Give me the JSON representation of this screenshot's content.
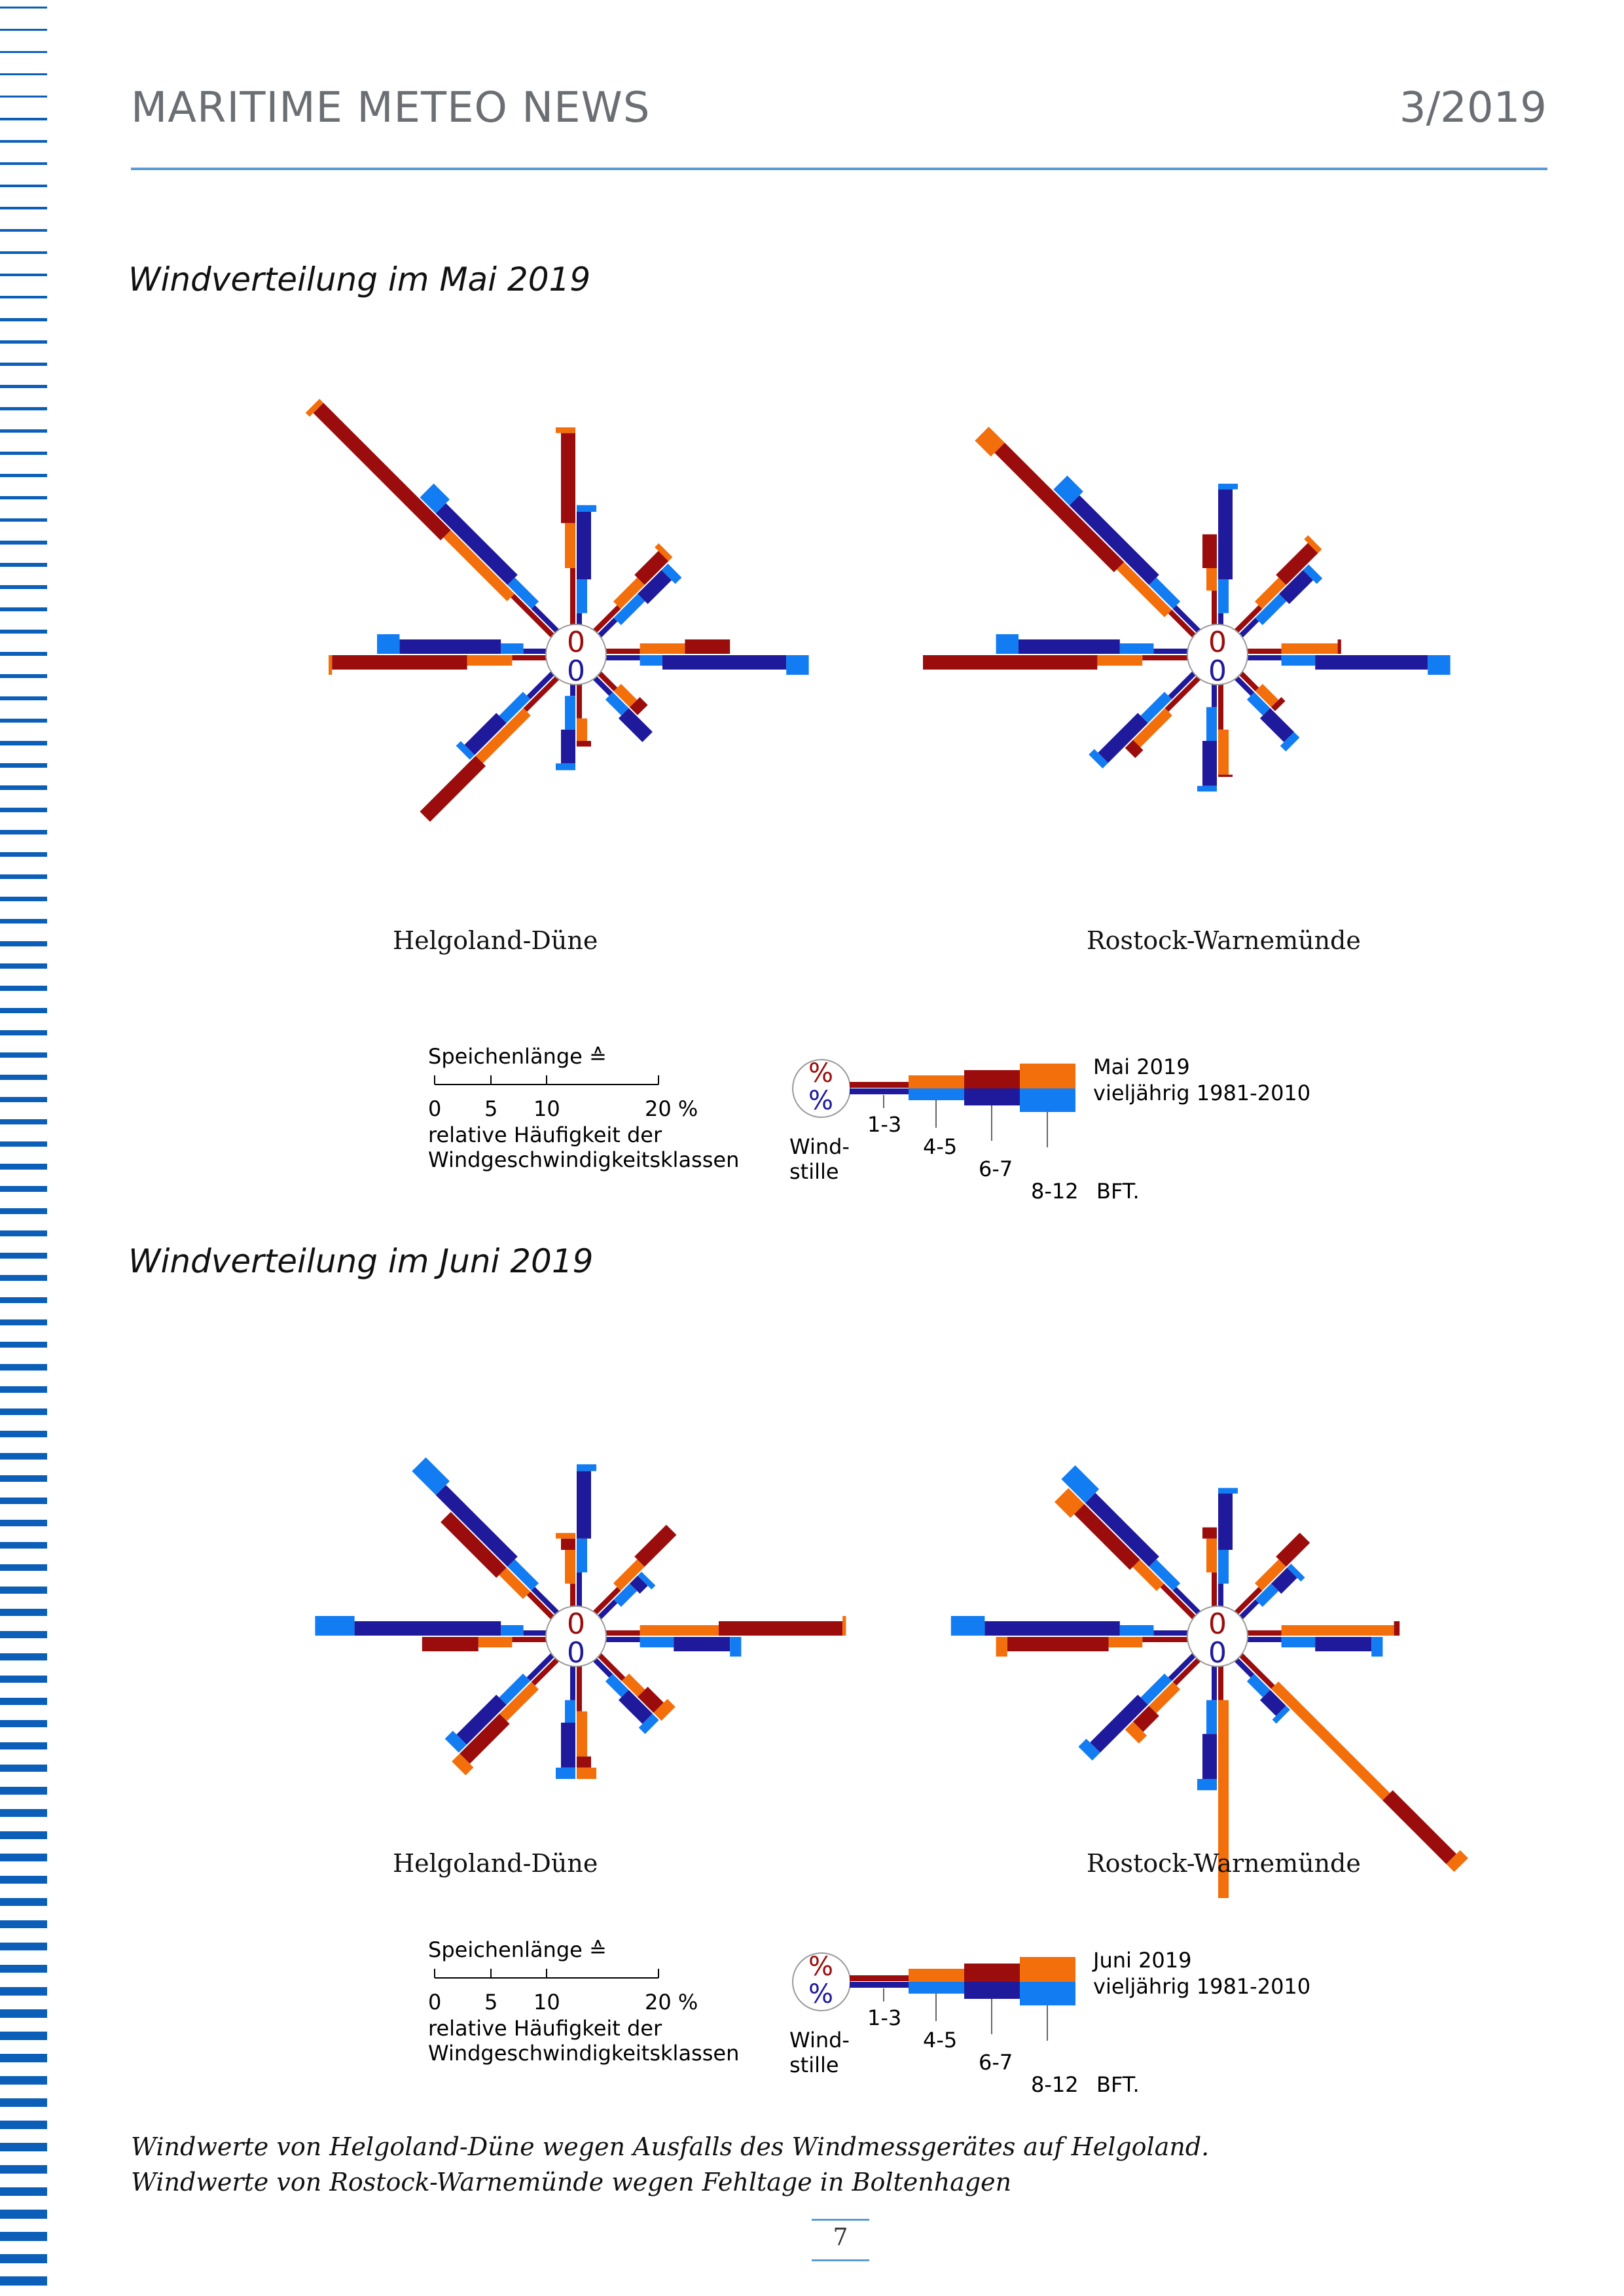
{
  "header": {
    "title": "MARITIME METEO NEWS",
    "issue": "3/2019"
  },
  "colors": {
    "stripe": "#0c5fb8",
    "rule": "#5b9bd5",
    "current_calm_low": "#9b0c0c",
    "current_45": "#f26f0c",
    "current_high": "#f26f0c",
    "current_67": "#9b0c0c",
    "clim_low": "#1f1a9b",
    "clim_45": "#127df2",
    "clim_67": "#1f1a9b",
    "clim_high": "#127df2"
  },
  "sections": [
    {
      "title": "Windverteilung im Mai 2019",
      "legend": {
        "scale_title": "Speichenlänge ≙",
        "scale_ticks": [
          "0",
          "5",
          "10",
          "20 %"
        ],
        "scale_caption_1": "relative Häufigkeit der",
        "scale_caption_2": "Windgeschwindigkeitsklassen",
        "calm_symbol": "%",
        "calm_label_1": "Wind-",
        "calm_label_2": "stille",
        "class_labels": [
          "1-3",
          "4-5",
          "6-7",
          "8-12"
        ],
        "unit": "BFT.",
        "current_label": "Mai 2019",
        "clim_label": "vieljährig 1981-2010"
      }
    },
    {
      "title": "Windverteilung im Juni 2019",
      "legend": {
        "scale_title": "Speichenlänge ≙",
        "scale_ticks": [
          "0",
          "5",
          "10",
          "20 %"
        ],
        "scale_caption_1": "relative Häufigkeit der",
        "scale_caption_2": "Windgeschwindigkeitsklassen",
        "calm_symbol": "%",
        "calm_label_1": "Wind-",
        "calm_label_2": "stille",
        "class_labels": [
          "1-3",
          "4-5",
          "6-7",
          "8-12"
        ],
        "unit": "BFT.",
        "current_label": "Juni 2019",
        "clim_label": "vieljährig 1981-2010"
      }
    }
  ],
  "notes": [
    "Windwerte von Helgoland-Düne wegen Ausfalls des Windmessgerätes auf Helgoland.",
    "Windwerte von Rostock-Warnemünde wegen Fehltage in Boltenhagen"
  ],
  "page_number": "7",
  "chart_data": [
    {
      "type": "wind-rose",
      "month": "Mai 2019",
      "station": "Helgoland-Düne",
      "calm_current": "0",
      "calm_clim": "0",
      "directions": [
        "N",
        "NE",
        "E",
        "SE",
        "S",
        "SW",
        "W",
        "NW"
      ],
      "current": [
        [
          5,
          4,
          8,
          0.5
        ],
        [
          3,
          3,
          3,
          0.5
        ],
        [
          3,
          4,
          4,
          0
        ],
        [
          2,
          2,
          1,
          0
        ],
        [
          3,
          2,
          0.5,
          0
        ],
        [
          4,
          6,
          7,
          0
        ],
        [
          3,
          4,
          12,
          0.3
        ],
        [
          5,
          8,
          16,
          0.5
        ]
      ],
      "clim": [
        [
          1,
          3,
          6,
          0.6
        ],
        [
          2,
          3,
          3,
          0.8
        ],
        [
          3,
          2,
          11,
          2
        ],
        [
          2,
          2,
          3,
          0
        ],
        [
          1,
          3,
          3,
          0.6
        ],
        [
          3,
          3,
          4,
          0.6
        ],
        [
          2,
          2,
          9,
          2
        ],
        [
          3,
          3,
          9,
          2
        ]
      ]
    },
    {
      "type": "wind-rose",
      "month": "Mai 2019",
      "station": "Rostock-Warnemünde",
      "calm_current": "0",
      "calm_clim": "0",
      "directions": [
        "N",
        "NE",
        "E",
        "SE",
        "S",
        "SW",
        "W",
        "NW"
      ],
      "current": [
        [
          3,
          2,
          3,
          0
        ],
        [
          3,
          3,
          4,
          0.5
        ],
        [
          3,
          5,
          0.3,
          0
        ],
        [
          2,
          2,
          0.5,
          0
        ],
        [
          4,
          4,
          0.2,
          0
        ],
        [
          4,
          4,
          1,
          0
        ],
        [
          4,
          4,
          20,
          3
        ],
        [
          3,
          6,
          15,
          2
        ]
      ],
      "clim": [
        [
          1,
          3,
          8,
          0.5
        ],
        [
          2,
          3,
          3,
          0.7
        ],
        [
          3,
          3,
          10,
          2
        ],
        [
          2,
          2,
          3,
          0.7
        ],
        [
          2,
          3,
          4,
          0.5
        ],
        [
          3,
          3,
          5,
          0.7
        ],
        [
          3,
          3,
          9,
          2
        ],
        [
          3,
          3,
          10,
          2
        ]
      ]
    },
    {
      "type": "wind-rose",
      "month": "Juni 2019",
      "station": "Helgoland-Düne",
      "calm_current": "0",
      "calm_clim": "0",
      "directions": [
        "N",
        "NE",
        "E",
        "SE",
        "S",
        "SW",
        "W",
        "NW"
      ],
      "current": [
        [
          2,
          3,
          1,
          0.5
        ],
        [
          3,
          3,
          4,
          0
        ],
        [
          3,
          7,
          11,
          0.3
        ],
        [
          3,
          2,
          2,
          1
        ],
        [
          4,
          4,
          1,
          1
        ],
        [
          3,
          4,
          5,
          1
        ],
        [
          3,
          3,
          5,
          0
        ],
        [
          3,
          3,
          7,
          0
        ]
      ],
      "clim": [
        [
          3,
          3,
          6,
          0.6
        ],
        [
          2,
          2,
          1,
          0.5
        ],
        [
          3,
          3,
          5,
          1
        ],
        [
          2,
          2,
          3,
          0.8
        ],
        [
          3,
          2,
          4,
          1
        ],
        [
          3,
          3,
          5,
          1
        ],
        [
          2,
          2,
          13,
          3.5
        ],
        [
          3,
          3,
          9,
          3
        ]
      ]
    },
    {
      "type": "wind-rose",
      "month": "Juni 2019",
      "station": "Rostock-Warnemünde",
      "calm_current": "0",
      "calm_clim": "0",
      "directions": [
        "N",
        "NE",
        "E",
        "SE",
        "S",
        "SW",
        "W",
        "NW"
      ],
      "current": [
        [
          3,
          3,
          1,
          0
        ],
        [
          3,
          3,
          3,
          0
        ],
        [
          3,
          10,
          0.5,
          0
        ],
        [
          4,
          14,
          8,
          1
        ],
        [
          3,
          18,
          0.5,
          0
        ],
        [
          3,
          3,
          2,
          1
        ],
        [
          4,
          3,
          9,
          1
        ],
        [
          4,
          3,
          7,
          2
        ]
      ],
      "clim": [
        [
          2,
          3,
          5,
          0.5
        ],
        [
          2,
          2,
          2,
          0.5
        ],
        [
          3,
          3,
          5,
          1
        ],
        [
          2,
          2,
          2,
          0.5
        ],
        [
          3,
          3,
          4,
          1
        ],
        [
          3,
          3,
          6,
          1
        ],
        [
          3,
          3,
          12,
          3
        ],
        [
          3,
          3,
          8,
          3
        ]
      ]
    }
  ]
}
